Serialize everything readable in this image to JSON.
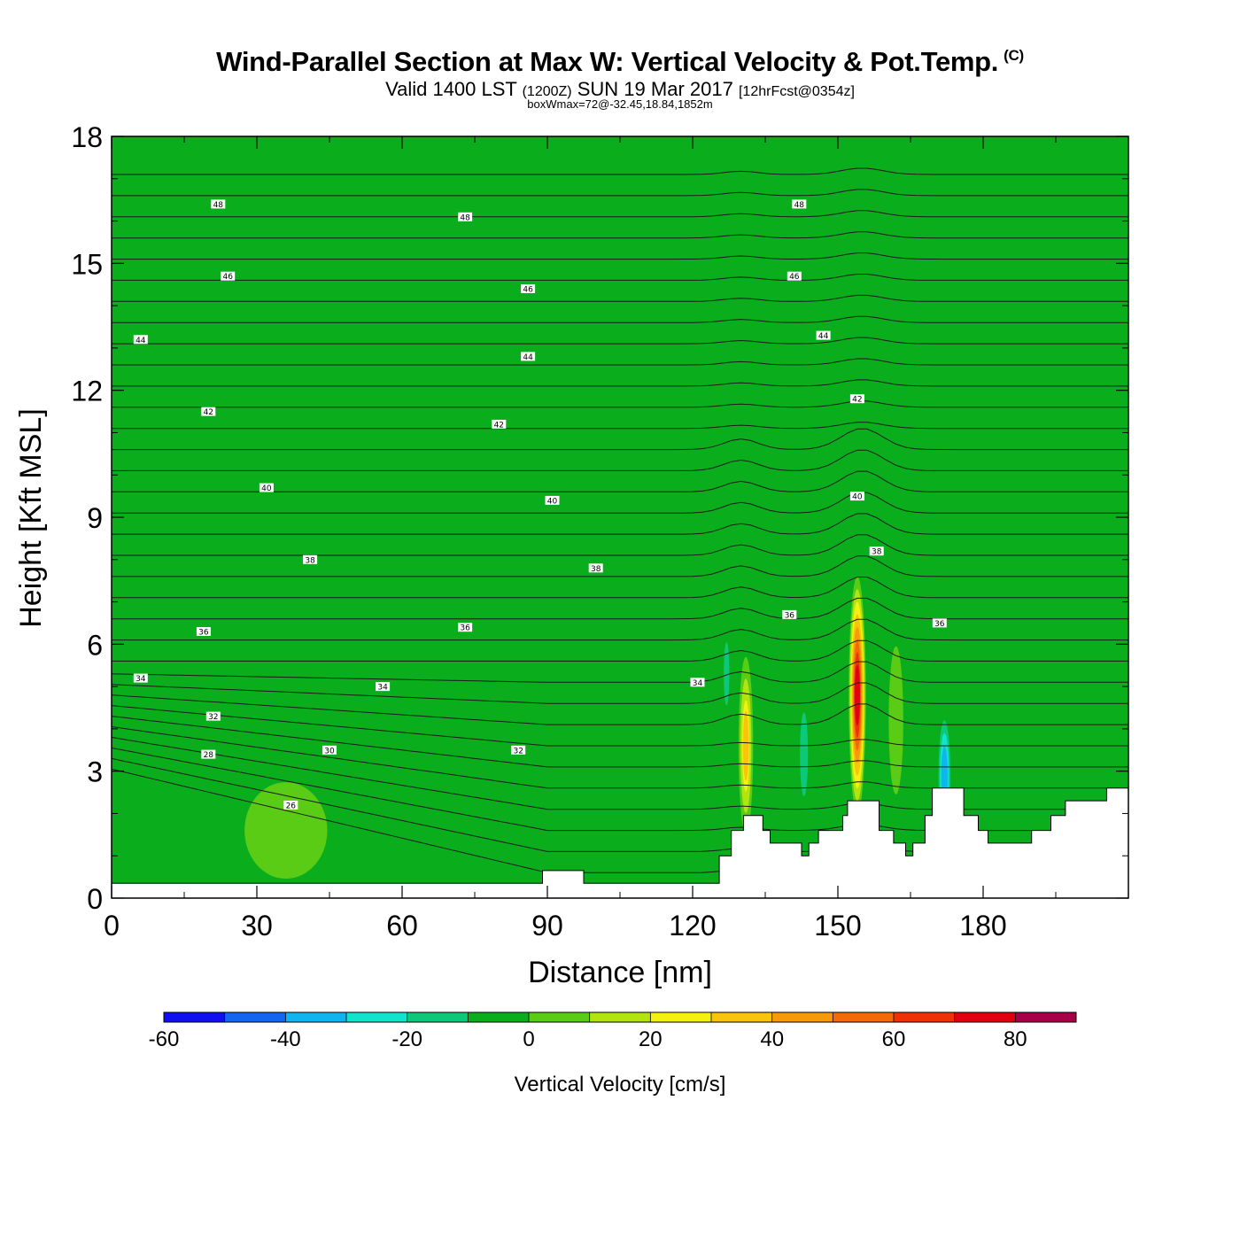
{
  "chart_data": {
    "type": "heatmap",
    "title": "Wind-Parallel Section at Max W: Vertical Velocity & Pot.Temp.",
    "copyright": "(C)",
    "subtitle_prefix": "Valid 1400 LST",
    "subtitle_utc": "(1200Z)",
    "subtitle_date": "SUN 19 Mar 2017",
    "subtitle_forecast": "[12hrFcst@0354z]",
    "subsubtitle": "boxWmax=72@-32.45,18.84,1852m",
    "xlabel": "Distance [nm]",
    "ylabel": "Height [Kft MSL]",
    "xlim": [
      0,
      210
    ],
    "ylim": [
      0,
      18
    ],
    "x_ticks": [
      0,
      30,
      60,
      90,
      120,
      150,
      180
    ],
    "y_ticks": [
      0,
      3,
      6,
      9,
      12,
      15,
      18
    ],
    "colorbar": {
      "label": "Vertical Velocity [cm/s]",
      "range": [
        -60,
        90
      ],
      "tick_labels": [
        -60,
        -40,
        -20,
        0,
        20,
        40,
        60,
        80
      ],
      "colors": [
        "#1010ee",
        "#1466f0",
        "#10b4ee",
        "#12e4cc",
        "#0ec87a",
        "#0aae1c",
        "#5acc16",
        "#b2e410",
        "#f4f010",
        "#f8c40c",
        "#f69a0a",
        "#f46a08",
        "#ee3206",
        "#e00010",
        "#a80048"
      ]
    },
    "theta_contour_labels": [
      {
        "dist": 22,
        "h": 16.4,
        "label": "48"
      },
      {
        "dist": 73,
        "h": 16.1,
        "label": "48"
      },
      {
        "dist": 142,
        "h": 16.4,
        "label": "48"
      },
      {
        "dist": 24,
        "h": 14.7,
        "label": "46"
      },
      {
        "dist": 86,
        "h": 14.4,
        "label": "46"
      },
      {
        "dist": 141,
        "h": 14.7,
        "label": "46"
      },
      {
        "dist": 6,
        "h": 13.2,
        "label": "44"
      },
      {
        "dist": 86,
        "h": 12.8,
        "label": "44"
      },
      {
        "dist": 147,
        "h": 13.3,
        "label": "44"
      },
      {
        "dist": 20,
        "h": 11.5,
        "label": "42"
      },
      {
        "dist": 80,
        "h": 11.2,
        "label": "42"
      },
      {
        "dist": 154,
        "h": 11.8,
        "label": "42"
      },
      {
        "dist": 32,
        "h": 9.7,
        "label": "40"
      },
      {
        "dist": 91,
        "h": 9.4,
        "label": "40"
      },
      {
        "dist": 154,
        "h": 9.5,
        "label": "40"
      },
      {
        "dist": 41,
        "h": 8.0,
        "label": "38"
      },
      {
        "dist": 100,
        "h": 7.8,
        "label": "38"
      },
      {
        "dist": 158,
        "h": 8.2,
        "label": "38"
      },
      {
        "dist": 19,
        "h": 6.3,
        "label": "36"
      },
      {
        "dist": 73,
        "h": 6.4,
        "label": "36"
      },
      {
        "dist": 140,
        "h": 6.7,
        "label": "36"
      },
      {
        "dist": 171,
        "h": 6.5,
        "label": "36"
      },
      {
        "dist": 6,
        "h": 5.2,
        "label": "34"
      },
      {
        "dist": 56,
        "h": 5.0,
        "label": "34"
      },
      {
        "dist": 121,
        "h": 5.1,
        "label": "34"
      },
      {
        "dist": 21,
        "h": 4.3,
        "label": "32"
      },
      {
        "dist": 84,
        "h": 3.5,
        "label": "32"
      },
      {
        "dist": 45,
        "h": 3.5,
        "label": "30"
      },
      {
        "dist": 20,
        "h": 3.4,
        "label": "28"
      },
      {
        "dist": 37,
        "h": 2.2,
        "label": "26"
      }
    ],
    "w_features": [
      {
        "dist": 154,
        "h": 4.8,
        "width_nm": 3.5,
        "height_kft": 5.6,
        "w": 80
      },
      {
        "dist": 131,
        "h": 3.6,
        "width_nm": 3.0,
        "height_kft": 4.2,
        "w": 35
      },
      {
        "dist": 172,
        "h": 2.9,
        "width_nm": 3.0,
        "height_kft": 3.2,
        "w": -45
      },
      {
        "dist": 143,
        "h": 3.4,
        "width_nm": 2.5,
        "height_kft": 3.0,
        "w": -25
      },
      {
        "dist": 127,
        "h": 5.3,
        "width_nm": 2.0,
        "height_kft": 2.6,
        "w": -20
      },
      {
        "dist": 196,
        "h": 4.9,
        "width_nm": 3.5,
        "height_kft": 2.5,
        "w": -15
      },
      {
        "dist": 162,
        "h": 4.2,
        "width_nm": 3.0,
        "height_kft": 3.5,
        "w": 12
      },
      {
        "dist": 36,
        "h": 1.6,
        "width_nm": 12.0,
        "height_kft": 1.6,
        "w": 5
      }
    ],
    "terrain": [
      [
        0,
        0.35
      ],
      [
        89,
        0.35
      ],
      [
        89,
        0.65
      ],
      [
        97.5,
        0.65
      ],
      [
        97.5,
        0.35
      ],
      [
        125.5,
        0.35
      ],
      [
        125.5,
        1.0
      ],
      [
        128,
        1.0
      ],
      [
        128,
        1.6
      ],
      [
        130.5,
        1.6
      ],
      [
        130.5,
        1.95
      ],
      [
        134.5,
        1.95
      ],
      [
        134.5,
        1.6
      ],
      [
        136,
        1.6
      ],
      [
        136,
        1.3
      ],
      [
        142.5,
        1.3
      ],
      [
        142.5,
        1.0
      ],
      [
        144,
        1.0
      ],
      [
        144,
        1.3
      ],
      [
        146,
        1.3
      ],
      [
        146,
        1.6
      ],
      [
        151,
        1.6
      ],
      [
        151,
        1.95
      ],
      [
        152,
        1.95
      ],
      [
        152,
        2.3
      ],
      [
        158.5,
        2.3
      ],
      [
        158.5,
        1.6
      ],
      [
        161.5,
        1.6
      ],
      [
        161.5,
        1.3
      ],
      [
        164,
        1.3
      ],
      [
        164,
        1.0
      ],
      [
        165.5,
        1.0
      ],
      [
        165.5,
        1.3
      ],
      [
        168,
        1.3
      ],
      [
        168,
        1.95
      ],
      [
        169.5,
        1.95
      ],
      [
        169.5,
        2.6
      ],
      [
        176,
        2.6
      ],
      [
        176,
        1.95
      ],
      [
        179,
        1.95
      ],
      [
        179,
        1.6
      ],
      [
        181,
        1.6
      ],
      [
        181,
        1.3
      ],
      [
        190,
        1.3
      ],
      [
        190,
        1.6
      ],
      [
        194,
        1.6
      ],
      [
        194,
        1.95
      ],
      [
        197,
        1.95
      ],
      [
        197,
        2.3
      ],
      [
        205.5,
        2.3
      ],
      [
        205.5,
        2.6
      ],
      [
        210,
        2.6
      ]
    ]
  }
}
